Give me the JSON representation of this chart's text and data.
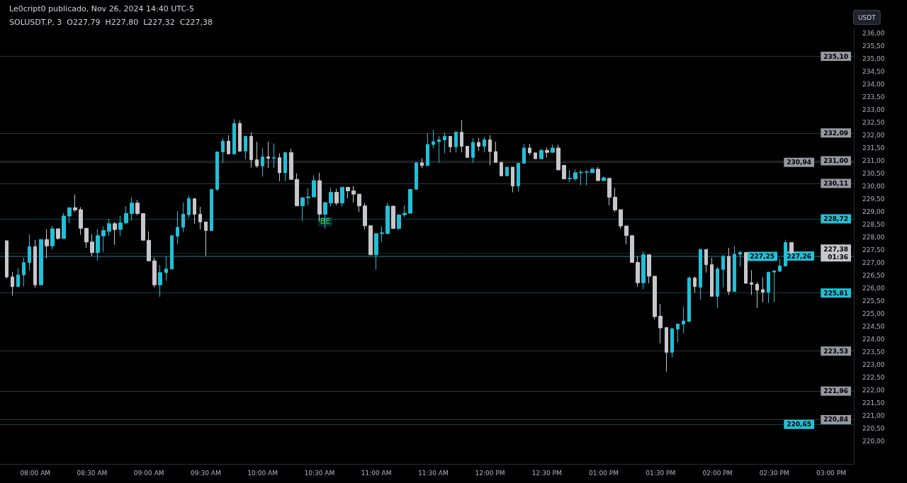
{
  "chart_data": {
    "type": "candlestick",
    "title": "Le0cript0 publicado, Nov 26, 2024 14:40 UTC-5",
    "subtitle": "SOLUSDT.P, 3  O227,79  H227,80  L227,32  C227,38",
    "ylabel": "USDT",
    "colors": [
      "#c6c6cb",
      "#c6c6cb",
      "#22bfd6",
      "#22bfd6",
      "#22bfd6",
      "#c6c6cb",
      "#22bfd6",
      "#c6c6cb",
      "#22bfd6",
      "#c6c6cb",
      "#22bfd6",
      "#22bfd6",
      "#c6c6cb",
      "#c6c6cb",
      "#c6c6cb",
      "#c6c6cb",
      "#22bfd6",
      "#22bfd6",
      "#22bfd6",
      "#c6c6cb",
      "#22bfd6",
      "#22bfd6",
      "#22bfd6",
      "#c6c6cb",
      "#c6c6cb",
      "#c6c6cb",
      "#c6c6cb",
      "#22bfd6",
      "#22bfd6",
      "#22bfd6",
      "#22bfd6",
      "#22bfd6",
      "#22bfd6",
      "#c6c6cb",
      "#c6c6cb",
      "#c6c6cb",
      "#22bfd6",
      "#22bfd6",
      "#22bfd6",
      "#c6c6cb",
      "#22bfd6",
      "#c6c6cb",
      "#22bfd6",
      "#c6c6cb",
      "#c6c6cb",
      "#22bfd6",
      "#c6c6cb",
      "#22bfd6",
      "#c6c6cb",
      "#22bfd6",
      "#c6c6cb",
      "#c6c6cb",
      "#22bfd6",
      "#22bfd6",
      "#22bfd6",
      "#c6c6cb",
      "#22bfd6",
      "#22bfd6",
      "#c6c6cb",
      "#22bfd6",
      "#c6c6cb",
      "#c6c6cb",
      "#c6c6cb",
      "#c6c6cb",
      "#c6c6cb",
      "#22bfd6",
      "#22bfd6",
      "#22bfd6",
      "#c6c6cb",
      "#22bfd6",
      "#22bfd6",
      "#22bfd6",
      "#22bfd6",
      "#c6c6cb",
      "#22bfd6",
      "#22bfd6",
      "#22bfd6",
      "#22bfd6",
      "#c6c6cb",
      "#22bfd6",
      "#c6c6cb",
      "#c6c6cb",
      "#22bfd6",
      "#c6c6cb",
      "#22bfd6",
      "#c6c6cb",
      "#c6c6cb",
      "#c6c6cb",
      "#22bfd6",
      "#c6c6cb",
      "#22bfd6",
      "#22bfd6",
      "#c6c6cb",
      "#c6c6cb",
      "#22bfd6",
      "#c6c6cb",
      "#22bfd6",
      "#c6c6cb",
      "#c6c6cb",
      "#22bfd6",
      "#22bfd6",
      "#22bfd6",
      "#22bfd6",
      "#22bfd6",
      "#c6c6cb",
      "#22bfd6",
      "#c6c6cb",
      "#c6c6cb",
      "#c6c6cb",
      "#c6c6cb",
      "#c6c6cb",
      "#c6c6cb",
      "#22bfd6",
      "#c6c6cb",
      "#c6c6cb",
      "#c6c6cb",
      "#c6c6cb",
      "#22bfd6",
      "#22bfd6",
      "#22bfd6",
      "#22bfd6",
      "#c6c6cb",
      "#22bfd6",
      "#c6c6cb",
      "#c6c6cb",
      "#22bfd6",
      "#22bfd6",
      "#c6c6cb",
      "#22bfd6",
      "#22bfd6",
      "#c6c6cb",
      "#c6c6cb",
      "#c6c6cb",
      "#c6c6cb",
      "#22bfd6",
      "#22bfd6",
      "#22bfd6",
      "#22bfd6",
      "#c6c6cb"
    ],
    "x": [
      7.75,
      7.8,
      7.85,
      7.9,
      7.95,
      8,
      8.05,
      8.1,
      8.15,
      8.2,
      8.25,
      8.3,
      8.35,
      8.4,
      8.45,
      8.5,
      8.55,
      8.6,
      8.65,
      8.7,
      8.75,
      8.8,
      8.85,
      8.9,
      8.95,
      9,
      9.05,
      9.1,
      9.15,
      9.2,
      9.25,
      9.3,
      9.35,
      9.4,
      9.45,
      9.5,
      9.55,
      9.6,
      9.65,
      9.7,
      9.75,
      9.8,
      9.85,
      9.9,
      9.95,
      10,
      10.05,
      10.1,
      10.15,
      10.2,
      10.25,
      10.3,
      10.35,
      10.4,
      10.45,
      10.5,
      10.55,
      10.6,
      10.65,
      10.7,
      10.75,
      10.8,
      10.85,
      10.9,
      10.95,
      11,
      11.05,
      11.1,
      11.15,
      11.2,
      11.25,
      11.3,
      11.35,
      11.4,
      11.45,
      11.5,
      11.55,
      11.6,
      11.65,
      11.7,
      11.75,
      11.8,
      11.85,
      11.9,
      11.95,
      12,
      12.05,
      12.1,
      12.15,
      12.2,
      12.25,
      12.3,
      12.35,
      12.4,
      12.45,
      12.5,
      12.55,
      12.6,
      12.65,
      12.7,
      12.75,
      12.8,
      12.85,
      12.9,
      12.95,
      13,
      13.05,
      13.1,
      13.15,
      13.2,
      13.25,
      13.3,
      13.35,
      13.4,
      13.45,
      13.5,
      13.55,
      13.6,
      13.65,
      13.7,
      13.75,
      13.8,
      13.85,
      13.9,
      13.95,
      14,
      14.05,
      14.1,
      14.15,
      14.2,
      14.25,
      14.3,
      14.35,
      14.4,
      14.45,
      14.5,
      14.55,
      14.6,
      14.65
    ],
    "ohlc": [
      [
        227.86,
        227.86,
        226.38,
        226.44
      ],
      [
        226.44,
        226.64,
        225.71,
        226.06
      ],
      [
        226.06,
        226.78,
        226.06,
        226.52
      ],
      [
        226.52,
        227.19,
        226.07,
        227.0
      ],
      [
        227.0,
        228.12,
        226.7,
        227.63
      ],
      [
        227.63,
        227.89,
        226.01,
        226.13
      ],
      [
        226.13,
        227.91,
        226.13,
        227.91
      ],
      [
        227.91,
        228.31,
        227.17,
        227.66
      ],
      [
        227.66,
        228.44,
        227.52,
        228.33
      ],
      [
        228.33,
        228.33,
        227.9,
        227.95
      ],
      [
        227.95,
        228.95,
        227.95,
        228.83
      ],
      [
        228.83,
        229.16,
        228.56,
        229.16
      ],
      [
        229.16,
        229.68,
        228.99,
        229.07
      ],
      [
        229.08,
        229.18,
        228.09,
        228.35
      ],
      [
        228.35,
        228.35,
        227.58,
        227.81
      ],
      [
        227.81,
        228.12,
        227.26,
        227.4
      ],
      [
        227.4,
        228.32,
        227.07,
        228.06
      ],
      [
        228.05,
        228.42,
        227.42,
        228.26
      ],
      [
        228.23,
        228.72,
        228.05,
        228.53
      ],
      [
        228.53,
        228.6,
        227.7,
        228.3
      ],
      [
        228.3,
        228.83,
        228.05,
        228.56
      ],
      [
        228.56,
        229.22,
        228.51,
        228.93
      ],
      [
        228.93,
        229.57,
        228.65,
        229.34
      ],
      [
        229.34,
        229.46,
        228.86,
        228.93
      ],
      [
        228.93,
        228.93,
        227.88,
        227.88
      ],
      [
        227.88,
        228.23,
        227.07,
        227.07
      ],
      [
        227.07,
        227.21,
        226.03,
        226.13
      ],
      [
        226.13,
        226.91,
        225.66,
        226.61
      ],
      [
        226.61,
        227.25,
        226.29,
        226.75
      ],
      [
        226.75,
        228.06,
        226.75,
        228.06
      ],
      [
        228.04,
        229.02,
        227.72,
        228.39
      ],
      [
        228.39,
        229.36,
        228.2,
        228.9
      ],
      [
        228.88,
        229.62,
        228.76,
        229.51
      ],
      [
        229.51,
        229.51,
        228.53,
        228.9
      ],
      [
        228.9,
        229.19,
        228.3,
        228.6
      ],
      [
        228.6,
        228.6,
        227.26,
        228.26
      ],
      [
        228.26,
        229.88,
        228.26,
        229.88
      ],
      [
        229.88,
        231.35,
        229.81,
        231.35
      ],
      [
        231.35,
        231.89,
        230.92,
        231.77
      ],
      [
        231.77,
        232.01,
        231.27,
        231.27
      ],
      [
        231.27,
        232.63,
        231.27,
        232.46
      ],
      [
        232.46,
        232.58,
        231.35,
        231.38
      ],
      [
        231.38,
        231.96,
        231.06,
        231.96
      ],
      [
        231.96,
        232.12,
        230.73,
        231.04
      ],
      [
        231.04,
        231.75,
        230.73,
        230.8
      ],
      [
        230.8,
        231.49,
        230.38,
        231.15
      ],
      [
        231.15,
        231.75,
        230.71,
        231.1
      ],
      [
        231.1,
        231.68,
        230.71,
        231.12
      ],
      [
        231.12,
        231.29,
        230.2,
        230.53
      ],
      [
        230.53,
        231.32,
        230.2,
        231.32
      ],
      [
        231.32,
        231.47,
        230.27,
        230.27
      ],
      [
        230.27,
        230.5,
        229.23,
        229.23
      ],
      [
        229.23,
        229.55,
        228.63,
        229.55
      ],
      [
        229.55,
        229.92,
        229.25,
        229.58
      ],
      [
        229.58,
        230.43,
        229.58,
        230.22
      ],
      [
        230.22,
        230.53,
        228.62,
        228.9
      ],
      [
        228.9,
        229.36,
        228.34,
        229.36
      ],
      [
        229.34,
        229.94,
        229.2,
        229.76
      ],
      [
        229.76,
        229.9,
        229.25,
        229.34
      ],
      [
        229.34,
        229.96,
        229.2,
        229.96
      ],
      [
        229.96,
        229.96,
        229.53,
        229.82
      ],
      [
        229.82,
        230.01,
        229.36,
        229.69
      ],
      [
        229.69,
        229.69,
        228.99,
        229.23
      ],
      [
        229.23,
        229.34,
        228.31,
        228.45
      ],
      [
        228.45,
        228.45,
        227.31,
        227.31
      ],
      [
        227.31,
        228.14,
        226.73,
        228.14
      ],
      [
        228.14,
        228.42,
        227.82,
        228.17
      ],
      [
        228.14,
        229.34,
        228.14,
        229.22
      ],
      [
        229.22,
        229.22,
        228.34,
        228.34
      ],
      [
        228.34,
        228.88,
        228.28,
        228.88
      ],
      [
        228.88,
        229.25,
        228.79,
        228.94
      ],
      [
        228.94,
        229.88,
        228.94,
        229.88
      ],
      [
        229.88,
        230.95,
        229.88,
        230.92
      ],
      [
        230.92,
        231.1,
        230.71,
        230.81
      ],
      [
        230.81,
        232.07,
        230.81,
        231.64
      ],
      [
        231.64,
        232.21,
        231.49,
        231.75
      ],
      [
        231.75,
        231.98,
        230.92,
        231.82
      ],
      [
        231.82,
        232.12,
        231.29,
        231.96
      ],
      [
        231.96,
        231.96,
        231.33,
        231.55
      ],
      [
        231.55,
        232.17,
        231.33,
        232.12
      ],
      [
        232.12,
        232.6,
        231.33,
        231.57
      ],
      [
        231.57,
        231.57,
        231.13,
        231.13
      ],
      [
        231.13,
        231.89,
        230.92,
        231.72
      ],
      [
        231.72,
        231.89,
        231.38,
        231.57
      ],
      [
        231.57,
        231.94,
        231.33,
        231.82
      ],
      [
        231.82,
        232.0,
        230.82,
        231.36
      ],
      [
        231.36,
        231.75,
        230.94,
        230.94
      ],
      [
        230.94,
        230.94,
        230.41,
        230.41
      ],
      [
        230.41,
        230.75,
        230.41,
        230.75
      ],
      [
        230.75,
        230.75,
        229.76,
        230.01
      ],
      [
        230.01,
        230.9,
        229.8,
        230.9
      ],
      [
        230.9,
        231.66,
        230.9,
        231.5
      ],
      [
        231.5,
        231.66,
        231.22,
        231.31
      ],
      [
        231.31,
        231.31,
        231.08,
        231.08
      ],
      [
        231.08,
        231.46,
        231.08,
        231.41
      ],
      [
        231.41,
        231.52,
        231.13,
        231.33
      ],
      [
        231.33,
        231.64,
        231.33,
        231.5
      ],
      [
        231.5,
        231.63,
        230.64,
        230.64
      ],
      [
        230.82,
        230.82,
        230.29,
        230.29
      ],
      [
        230.29,
        230.64,
        230.16,
        230.31
      ],
      [
        230.29,
        230.66,
        230.22,
        230.53
      ],
      [
        230.53,
        230.64,
        230.04,
        230.55
      ],
      [
        230.55,
        230.64,
        230.04,
        230.56
      ],
      [
        230.53,
        230.74,
        230.53,
        230.67
      ],
      [
        230.67,
        230.75,
        230.22,
        230.22
      ],
      [
        230.22,
        230.38,
        230.22,
        230.33
      ],
      [
        230.31,
        230.31,
        229.25,
        229.57
      ],
      [
        229.57,
        229.94,
        228.99,
        229.07
      ],
      [
        229.08,
        229.08,
        228.34,
        228.44
      ],
      [
        228.44,
        228.44,
        227.72,
        228.06
      ],
      [
        228.06,
        228.06,
        227.01,
        227.01
      ],
      [
        227.01,
        227.26,
        226.05,
        226.21
      ],
      [
        226.21,
        227.45,
        225.96,
        227.31
      ],
      [
        227.31,
        227.31,
        226.19,
        226.47
      ],
      [
        226.47,
        226.47,
        224.78,
        224.88
      ],
      [
        224.9,
        225.38,
        223.83,
        224.44
      ],
      [
        224.45,
        224.45,
        222.72,
        223.48
      ],
      [
        223.48,
        224.41,
        223.28,
        224.41
      ],
      [
        224.39,
        224.59,
        223.88,
        224.59
      ],
      [
        224.59,
        225.27,
        224.23,
        224.71
      ],
      [
        224.69,
        226.45,
        224.69,
        226.4
      ],
      [
        226.4,
        226.45,
        225.82,
        226.06
      ],
      [
        226.04,
        227.52,
        225.55,
        227.52
      ],
      [
        227.52,
        227.52,
        226.61,
        226.92
      ],
      [
        226.92,
        227.19,
        225.68,
        225.68
      ],
      [
        225.68,
        226.83,
        225.22,
        226.75
      ],
      [
        226.73,
        227.32,
        226.03,
        227.24
      ],
      [
        227.24,
        227.58,
        225.73,
        225.87
      ],
      [
        225.87,
        227.66,
        225.87,
        227.33
      ],
      [
        227.33,
        227.47,
        226.84,
        227.4
      ],
      [
        227.4,
        227.4,
        226.19,
        226.19
      ],
      [
        226.21,
        226.7,
        225.73,
        226.15
      ],
      [
        226.15,
        226.24,
        225.22,
        225.92
      ],
      [
        225.94,
        226.43,
        225.45,
        225.84
      ],
      [
        225.84,
        226.63,
        225.41,
        226.63
      ],
      [
        226.63,
        226.68,
        225.45,
        226.68
      ],
      [
        226.66,
        227.15,
        226.66,
        226.87
      ],
      [
        226.87,
        227.9,
        226.87,
        227.79
      ],
      [
        227.79,
        227.8,
        227.32,
        227.38
      ]
    ],
    "xlim": [
      7.69,
      15.2
    ],
    "xticks": [
      {
        "value": 8,
        "label": "08:00 AM"
      },
      {
        "value": 8.5,
        "label": "08:30 AM"
      },
      {
        "value": 9,
        "label": "09:00 AM"
      },
      {
        "value": 9.5,
        "label": "09:30 AM"
      },
      {
        "value": 10,
        "label": "10:00 AM"
      },
      {
        "value": 10.5,
        "label": "10:30 AM"
      },
      {
        "value": 11,
        "label": "11:00 AM"
      },
      {
        "value": 11.5,
        "label": "11:30 AM"
      },
      {
        "value": 12,
        "label": "12:00 PM"
      },
      {
        "value": 12.5,
        "label": "12:30 PM"
      },
      {
        "value": 13,
        "label": "01:00 PM"
      },
      {
        "value": 13.5,
        "label": "01:30 PM"
      },
      {
        "value": 14,
        "label": "02:00 PM"
      },
      {
        "value": 14.5,
        "label": "02:30 PM"
      },
      {
        "value": 15,
        "label": "03:00 PM"
      }
    ],
    "ylim": [
      219.1,
      236.2
    ],
    "yticks": [
      {
        "value": 220,
        "label": "220,00"
      },
      {
        "value": 220.5,
        "label": "220,50"
      },
      {
        "value": 221,
        "label": "221,00"
      },
      {
        "value": 221.5,
        "label": "221,50"
      },
      {
        "value": 222,
        "label": "222,00"
      },
      {
        "value": 222.5,
        "label": "222,50"
      },
      {
        "value": 223,
        "label": "223,00"
      },
      {
        "value": 223.5,
        "label": "223,50"
      },
      {
        "value": 224,
        "label": "224,00"
      },
      {
        "value": 224.5,
        "label": "224,50"
      },
      {
        "value": 225,
        "label": "225,00"
      },
      {
        "value": 225.5,
        "label": "225,50"
      },
      {
        "value": 226,
        "label": "226,00"
      },
      {
        "value": 226.5,
        "label": "226,50"
      },
      {
        "value": 227,
        "label": "227,00"
      },
      {
        "value": 227.5,
        "label": "227,50"
      },
      {
        "value": 228,
        "label": "228,00"
      },
      {
        "value": 228.5,
        "label": "228,50"
      },
      {
        "value": 229,
        "label": "229,00"
      },
      {
        "value": 229.5,
        "label": "229,50"
      },
      {
        "value": 230,
        "label": "230,00"
      },
      {
        "value": 230.5,
        "label": "230,50"
      },
      {
        "value": 231,
        "label": "231,00"
      },
      {
        "value": 231.5,
        "label": "231,50"
      },
      {
        "value": 232,
        "label": "232,00"
      },
      {
        "value": 232.5,
        "label": "232,50"
      },
      {
        "value": 233,
        "label": "233,00"
      },
      {
        "value": 233.5,
        "label": "233,50"
      },
      {
        "value": 234,
        "label": "234,00"
      },
      {
        "value": 234.5,
        "label": "234,50"
      },
      {
        "value": 235,
        "label": "235,00"
      },
      {
        "value": 235.5,
        "label": "235,50"
      },
      {
        "value": 236,
        "label": "236,00"
      }
    ],
    "annotations": [
      {
        "text": "BE",
        "x": 10.55,
        "y": 228.61
      }
    ],
    "ref_lines": [
      {
        "axis": "y",
        "value": 235.1,
        "label": "235,10",
        "color": "#9598a1"
      },
      {
        "axis": "y",
        "value": 232.09,
        "label": "232,09",
        "color": "#9598a1"
      },
      {
        "axis": "y",
        "value": 231.0,
        "label": "231,00",
        "color": "#9598a1"
      },
      {
        "axis": "y",
        "value": 230.94,
        "label": "230,94",
        "color": "#9598a1"
      },
      {
        "axis": "y",
        "value": 230.11,
        "label": "230,11",
        "color": "#9598a1"
      },
      {
        "axis": "y",
        "value": 228.72,
        "label": "228,72",
        "color": "#22bfd6"
      },
      {
        "axis": "y",
        "value": 227.38,
        "label": "227,38\n01:36",
        "color": "#c6c6cb",
        "line_style": "dotted"
      },
      {
        "axis": "y",
        "value": 227.26,
        "label": "227,26",
        "color": "#22bfd6"
      },
      {
        "axis": "y",
        "value": 227.25,
        "label": "227,25",
        "color": "#22bfd6"
      },
      {
        "axis": "y",
        "value": 225.81,
        "label": "225,81",
        "color": "#22bfd6"
      },
      {
        "axis": "y",
        "value": 223.53,
        "label": "223,53",
        "color": "#9598a1"
      },
      {
        "axis": "y",
        "value": 221.96,
        "label": "221,96",
        "color": "#9598a1"
      },
      {
        "axis": "y",
        "value": 220.84,
        "label": "220,84",
        "color": "#9598a1"
      },
      {
        "axis": "y",
        "value": 220.65,
        "label": "220,65",
        "color": "#22bfd6"
      }
    ],
    "grid": false
  }
}
